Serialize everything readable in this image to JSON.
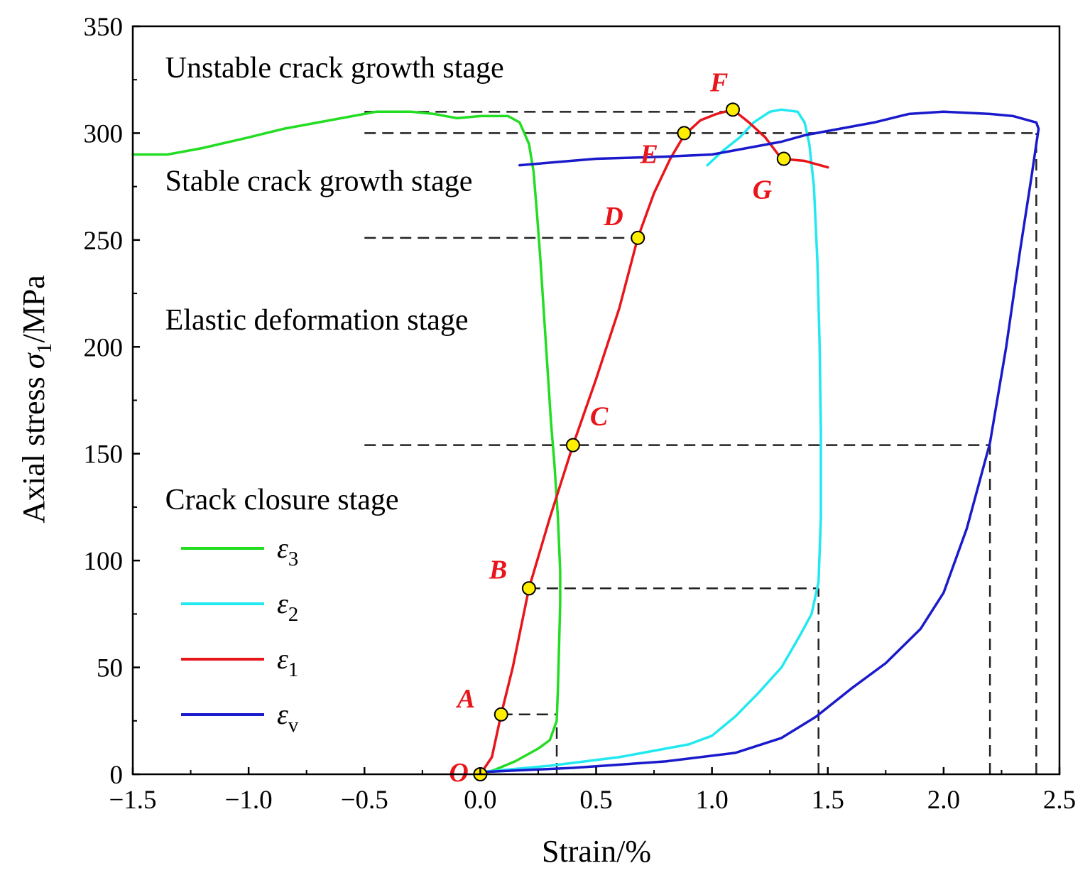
{
  "chart_data": {
    "type": "line",
    "xlabel": "Strain/%",
    "ylabel": {
      "prefix": "Axial stress ",
      "symbol": "σ",
      "sub": "1",
      "suffix": "/MPa"
    },
    "xlim": [
      -1.5,
      2.5
    ],
    "ylim": [
      0,
      350
    ],
    "xticks": [
      -1.5,
      -1.0,
      -0.5,
      0.0,
      0.5,
      1.0,
      1.5,
      2.0,
      2.5
    ],
    "xtick_labels": [
      "−1.5",
      "−1.0",
      "−0.5",
      "0.0",
      "0.5",
      "1.0",
      "1.5",
      "2.0",
      "2.5"
    ],
    "yticks": [
      0,
      50,
      100,
      150,
      200,
      250,
      300,
      350
    ],
    "ytick_labels": [
      "0",
      "50",
      "100",
      "150",
      "200",
      "250",
      "300",
      "350"
    ],
    "grid": false,
    "legend_position": "lower-left",
    "series": [
      {
        "name": "ε3",
        "symbol": "ε",
        "sub": "3",
        "color": "#22dd22",
        "points": [
          [
            0.0,
            0
          ],
          [
            0.06,
            2
          ],
          [
            0.15,
            6
          ],
          [
            0.25,
            12
          ],
          [
            0.3,
            16
          ],
          [
            0.33,
            25
          ],
          [
            0.335,
            40
          ],
          [
            0.34,
            60
          ],
          [
            0.345,
            80
          ],
          [
            0.345,
            95
          ],
          [
            0.335,
            120
          ],
          [
            0.32,
            145
          ],
          [
            0.305,
            165
          ],
          [
            0.29,
            190
          ],
          [
            0.275,
            215
          ],
          [
            0.26,
            240
          ],
          [
            0.245,
            262
          ],
          [
            0.23,
            282
          ],
          [
            0.21,
            295
          ],
          [
            0.17,
            305
          ],
          [
            0.12,
            308
          ],
          [
            0.0,
            308
          ],
          [
            -0.1,
            307
          ],
          [
            -0.2,
            309
          ],
          [
            -0.3,
            310
          ],
          [
            -0.45,
            310
          ],
          [
            -0.55,
            308
          ],
          [
            -0.7,
            305
          ],
          [
            -0.85,
            302
          ],
          [
            -1.0,
            298
          ],
          [
            -1.2,
            293
          ],
          [
            -1.35,
            290
          ],
          [
            -1.5,
            290
          ]
        ]
      },
      {
        "name": "ε2",
        "symbol": "ε",
        "sub": "2",
        "color": "#22e8f0",
        "points": [
          [
            0.0,
            1
          ],
          [
            0.3,
            4
          ],
          [
            0.6,
            8
          ],
          [
            0.9,
            14
          ],
          [
            1.0,
            18
          ],
          [
            1.1,
            27
          ],
          [
            1.2,
            38
          ],
          [
            1.3,
            50
          ],
          [
            1.38,
            65
          ],
          [
            1.43,
            75
          ],
          [
            1.46,
            90
          ],
          [
            1.47,
            120
          ],
          [
            1.47,
            160
          ],
          [
            1.465,
            200
          ],
          [
            1.455,
            240
          ],
          [
            1.44,
            275
          ],
          [
            1.42,
            295
          ],
          [
            1.4,
            305
          ],
          [
            1.37,
            310
          ],
          [
            1.3,
            311
          ],
          [
            1.25,
            310
          ],
          [
            1.18,
            305
          ],
          [
            1.12,
            298
          ],
          [
            1.05,
            292
          ],
          [
            0.98,
            285
          ]
        ]
      },
      {
        "name": "ε1",
        "symbol": "ε",
        "sub": "1",
        "color": "#e8151b",
        "points": [
          [
            0.0,
            0
          ],
          [
            0.05,
            8
          ],
          [
            0.09,
            28
          ],
          [
            0.14,
            50
          ],
          [
            0.21,
            87
          ],
          [
            0.3,
            120
          ],
          [
            0.4,
            154
          ],
          [
            0.5,
            185
          ],
          [
            0.6,
            218
          ],
          [
            0.68,
            251
          ],
          [
            0.75,
            272
          ],
          [
            0.82,
            288
          ],
          [
            0.88,
            299
          ],
          [
            0.95,
            306
          ],
          [
            1.02,
            309
          ],
          [
            1.09,
            311
          ],
          [
            1.16,
            305
          ],
          [
            1.23,
            298
          ],
          [
            1.3,
            288
          ],
          [
            1.4,
            287
          ],
          [
            1.5,
            284
          ]
        ]
      },
      {
        "name": "εv",
        "symbol": "ε",
        "sub": "v",
        "color": "#1a1acc",
        "points": [
          [
            0.0,
            1
          ],
          [
            0.4,
            3
          ],
          [
            0.8,
            6
          ],
          [
            1.1,
            10
          ],
          [
            1.3,
            17
          ],
          [
            1.45,
            27
          ],
          [
            1.6,
            40
          ],
          [
            1.75,
            52
          ],
          [
            1.9,
            68
          ],
          [
            2.0,
            85
          ],
          [
            2.1,
            115
          ],
          [
            2.2,
            155
          ],
          [
            2.27,
            200
          ],
          [
            2.33,
            245
          ],
          [
            2.38,
            280
          ],
          [
            2.4,
            295
          ],
          [
            2.41,
            302
          ],
          [
            2.4,
            305
          ],
          [
            2.3,
            308
          ],
          [
            2.2,
            309
          ],
          [
            2.0,
            310
          ],
          [
            1.85,
            309
          ],
          [
            1.7,
            305
          ],
          [
            1.55,
            302
          ],
          [
            1.4,
            299
          ],
          [
            1.3,
            296
          ],
          [
            1.15,
            293
          ],
          [
            1.0,
            290
          ],
          [
            0.8,
            289
          ],
          [
            0.5,
            288
          ],
          [
            0.17,
            285
          ]
        ]
      }
    ],
    "key_points": [
      {
        "label": "O",
        "x": 0.0,
        "y": 0
      },
      {
        "label": "A",
        "x": 0.09,
        "y": 28
      },
      {
        "label": "B",
        "x": 0.21,
        "y": 87
      },
      {
        "label": "C",
        "x": 0.4,
        "y": 154
      },
      {
        "label": "D",
        "x": 0.68,
        "y": 251
      },
      {
        "label": "E",
        "x": 0.88,
        "y": 300
      },
      {
        "label": "F",
        "x": 1.09,
        "y": 311
      },
      {
        "label": "G",
        "x": 1.31,
        "y": 288
      }
    ],
    "reference_lines": [
      {
        "type": "h",
        "y": 28,
        "x1": 0.09,
        "x2": 0.33
      },
      {
        "type": "v",
        "x": 0.33,
        "y1": 0,
        "y2": 28
      },
      {
        "type": "h",
        "y": 87,
        "x1": 0.21,
        "x2": 1.46
      },
      {
        "type": "v",
        "x": 1.46,
        "y1": 0,
        "y2": 87
      },
      {
        "type": "h",
        "y": 154,
        "x1": -0.5,
        "x2": 2.2
      },
      {
        "type": "v",
        "x": 2.2,
        "y1": 0,
        "y2": 154
      },
      {
        "type": "h",
        "y": 251,
        "x1": -0.5,
        "x2": 0.68
      },
      {
        "type": "h",
        "y": 300,
        "x1": -0.5,
        "x2": 2.4
      },
      {
        "type": "v",
        "x": 2.4,
        "y1": 0,
        "y2": 300
      },
      {
        "type": "h",
        "y": 310,
        "x1": -0.5,
        "x2": 1.09
      }
    ],
    "annotations": [
      {
        "text": "Unstable crack growth stage",
        "x": -1.36,
        "y": 326
      },
      {
        "text": "Stable crack growth stage",
        "x": -1.36,
        "y": 273
      },
      {
        "text": "Elastic deformation stage",
        "x": -1.36,
        "y": 208
      },
      {
        "text": "Crack closure stage",
        "x": -1.36,
        "y": 124
      }
    ],
    "marker_style": {
      "fill": "#ffee00",
      "stroke": "#000000"
    }
  }
}
